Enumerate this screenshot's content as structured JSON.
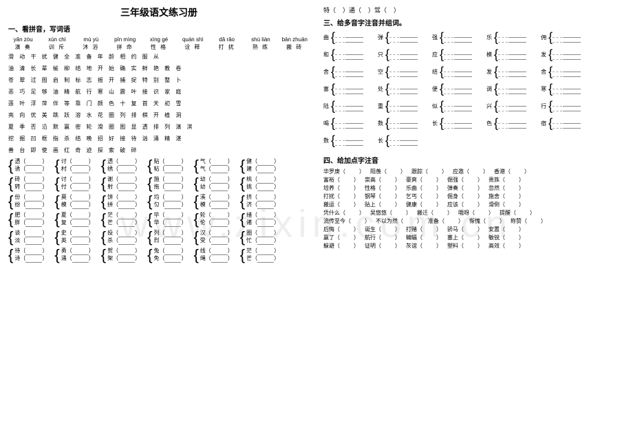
{
  "title": "三年级语文练习册",
  "sec1": "一、看拼音，写词语",
  "sec3": "三、给多音字注音并组词。",
  "sec4": "四、给加点字注音",
  "topChars": [
    "特（",
    "）通（",
    "）驾（",
    "）"
  ],
  "pinyinRows": [
    [
      "yǎn zòu",
      "xùn chì",
      "mù yù",
      "pīn mìng",
      "xìng gé",
      "quán shì",
      "dǎ rǎo",
      "shú liàn",
      "bān zhuān"
    ],
    [
      "演  奏",
      "训  斥",
      "沐  浴",
      "拼  命",
      "性  格",
      "诠  释",
      "打  扰",
      "熟  练",
      "搬  砖"
    ]
  ],
  "charRows": [
    "滑  动  干  扰  健  全  准  备  年  龄  相  约  服  从",
    "油  清  长  辈  榆  柳  结  地  开  始  确  实  鲜  艳  教  卷",
    "苍  翠  过  图  启  制  标  志  摇  开  捕  捉  特  别  整  卜",
    "恶  巧  足  够  油  精  航  行  寒  山  震  叶  接  识  家  庭",
    "莲  叶  浮  萍  伴  等  靠  门  颜  色  十  复  首  天  初  雪",
    "亮  向  优  美  跳  跃  溶  水  花  圈  列  排  棋  开  植  洞",
    "夏  季  否  沿  默  赢  密  轮  滑  圈  图  显  透  排  列  演  滨",
    "挖  掘  凹  框  指  杀  结  晚  招  好  接  待  汹  涌  精  湛",
    "善  台  即  使  画  红  奇  迹  探  索  破  碎"
  ],
  "bracketPairs": [
    [
      "透（",
      "诱（"
    ],
    [
      "讨（",
      "村（"
    ],
    [
      "透（",
      "绣（"
    ],
    [
      "贴（",
      "帖（"
    ],
    [
      "气（",
      "气（"
    ],
    [
      "健（",
      "建（"
    ],
    [
      "砖（",
      "转（"
    ],
    [
      "讨（",
      "付（"
    ],
    [
      "谢（",
      "射（"
    ],
    [
      "施（",
      "拖（"
    ],
    [
      "幼（",
      "幼（"
    ],
    [
      "桃（",
      "挑（"
    ],
    [
      "份（",
      "纷（"
    ],
    [
      "莫（",
      "模（"
    ],
    [
      "饼（",
      "拼（"
    ],
    [
      "均（",
      "匀（"
    ],
    [
      "溪（",
      "模（"
    ],
    [
      "挤（",
      "济（"
    ],
    [
      "肥（",
      "胖（"
    ],
    [
      "夏（",
      "复（"
    ],
    [
      "茫（",
      "芒（"
    ],
    [
      "毕（",
      "华（"
    ],
    [
      "轮（",
      "伦（"
    ],
    [
      "绪（",
      "诸（"
    ],
    [
      "谈（",
      "淡（"
    ],
    [
      "史（",
      "英（"
    ],
    [
      "投（",
      "杀（"
    ],
    [
      "列（",
      "烈（"
    ],
    [
      "汉（",
      "受（"
    ],
    [
      "圈（",
      "忙（"
    ],
    [
      "待（",
      "诗（"
    ],
    [
      "勇（",
      "涌（"
    ],
    [
      "贺（",
      "架（"
    ],
    [
      "兔（",
      "免（"
    ],
    [
      "线（",
      "绳（"
    ],
    [
      "茫（",
      "芒（"
    ]
  ],
  "multiChars": [
    "曲",
    "弹",
    "强",
    "乐",
    "佣",
    "和",
    "只",
    "应",
    "模",
    "发",
    "舍",
    "空",
    "结",
    "发",
    "舍",
    "塞",
    "处",
    "便",
    "调",
    "寒",
    "陆",
    "重",
    "似",
    "兴",
    "行",
    "喝",
    "数",
    "长",
    "色",
    "宿",
    "数",
    "长"
  ],
  "pronounceRows": [
    [
      "华罗庚（",
      "阳羡（",
      "跟踪（",
      "应邀（",
      "香港（"
    ],
    [
      "富裕（",
      "崇高（",
      "豪爽（",
      "倔强（",
      "贵族（"
    ],
    [
      "培养（",
      "性格（",
      "乐曲（",
      "弹奏（",
      "忽然（"
    ],
    [
      "打扰（",
      "钢琴（",
      "乞丐（",
      "倔身（",
      "施舍（"
    ],
    [
      "搬运（",
      "贴上（",
      "健康（",
      "应该（",
      "滑倒（"
    ],
    [
      "凭什么（",
      "吴悠悠（",
      "搬迁（",
      "哦呀（",
      "提醒（"
    ],
    [
      "流传至今（",
      "不以为然（",
      "准备（",
      "惭愧（",
      "称赞（"
    ],
    [
      "后悔（",
      "诞生（",
      "打赌（",
      "骄马（",
      "安置（"
    ],
    [
      "赢了（",
      "航行（",
      "蝙蝠（",
      "塞上（",
      "敏锐（"
    ],
    [
      "躲避（",
      "证明（",
      "灰谊（",
      "塑料（",
      "高效（"
    ]
  ]
}
